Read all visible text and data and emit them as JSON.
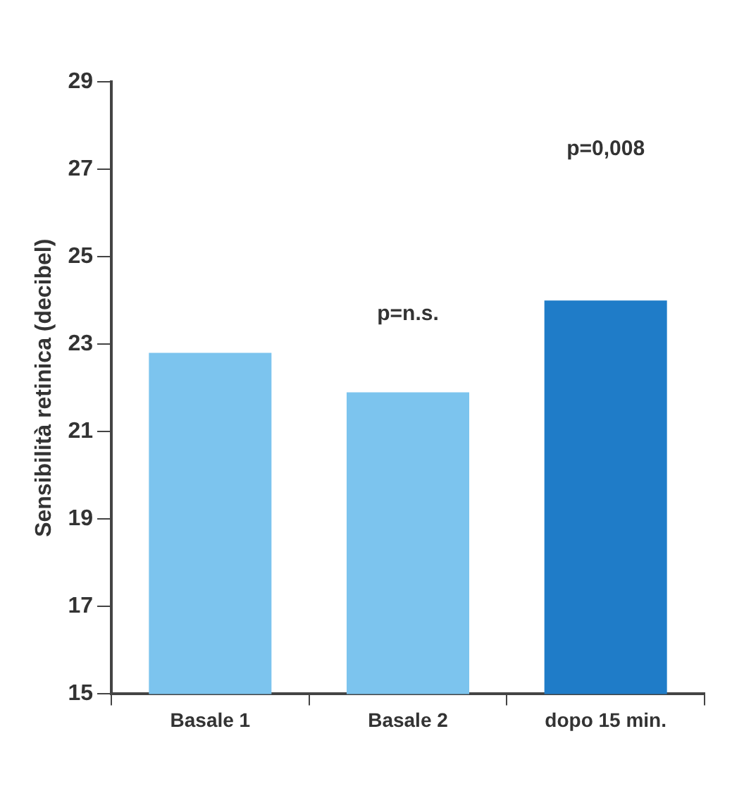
{
  "chart_data": {
    "type": "bar",
    "ylabel": "Sensibilità retinica (decibel)",
    "categories": [
      "Basale 1",
      "Basale 2",
      "dopo 15 min."
    ],
    "values": [
      22.8,
      21.9,
      24.0
    ],
    "colors": [
      "#7cc4ee",
      "#7cc4ee",
      "#1f7cc8"
    ],
    "ylim": [
      15,
      29
    ],
    "yticks": [
      15,
      17,
      19,
      21,
      23,
      25,
      27,
      29
    ],
    "grid": false,
    "legend": false,
    "annotations": [
      "p=n.s.",
      "p=0,008"
    ]
  }
}
